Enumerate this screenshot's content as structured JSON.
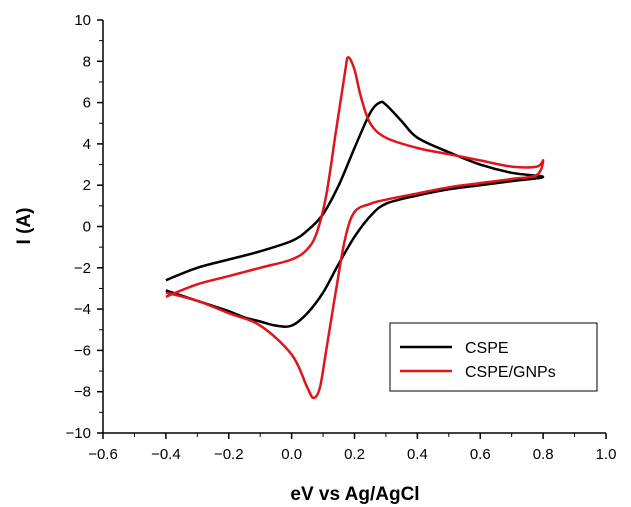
{
  "chart_data": {
    "type": "line",
    "title": "",
    "xlabel": "eV vs Ag/AgCl",
    "ylabel": "I (A)",
    "xlim": [
      -0.6,
      1.0
    ],
    "ylim": [
      -10,
      10
    ],
    "xticks": [
      -0.6,
      -0.4,
      -0.2,
      0.0,
      0.2,
      0.4,
      0.6,
      0.8,
      1.0
    ],
    "xtick_labels": [
      "−0.6",
      "−0.4",
      "−0.2",
      "0.0",
      "0.2",
      "0.4",
      "0.6",
      "0.8",
      "1.0"
    ],
    "yticks": [
      -10,
      -8,
      -6,
      -4,
      -2,
      0,
      2,
      4,
      6,
      8,
      10
    ],
    "ytick_labels": [
      "−10",
      "−8",
      "−6",
      "−4",
      "−2",
      "0",
      "2",
      "4",
      "6",
      "8",
      "10"
    ],
    "grid": false,
    "legend_position": "lower-right",
    "series": [
      {
        "name": "CSPE",
        "color": "#000000",
        "x": [
          -0.4,
          -0.3,
          -0.2,
          -0.1,
          0.0,
          0.05,
          0.1,
          0.15,
          0.2,
          0.25,
          0.28,
          0.3,
          0.35,
          0.4,
          0.5,
          0.6,
          0.7,
          0.8,
          0.7,
          0.6,
          0.5,
          0.4,
          0.3,
          0.25,
          0.2,
          0.15,
          0.1,
          0.05,
          0.0,
          -0.05,
          -0.1,
          -0.15,
          -0.2,
          -0.22,
          -0.3,
          -0.4
        ],
        "y": [
          -2.6,
          -2.0,
          -1.6,
          -1.2,
          -0.7,
          -0.2,
          0.6,
          2.0,
          3.8,
          5.5,
          6.0,
          5.9,
          5.1,
          4.3,
          3.6,
          3.0,
          2.6,
          2.4,
          2.2,
          2.0,
          1.8,
          1.5,
          1.1,
          0.5,
          -0.5,
          -1.8,
          -3.2,
          -4.2,
          -4.8,
          -4.8,
          -4.6,
          -4.4,
          -4.1,
          -4.0,
          -3.6,
          -3.1
        ]
      },
      {
        "name": "CSPE/GNPs",
        "color": "#e0141c",
        "x": [
          -0.4,
          -0.3,
          -0.2,
          -0.1,
          0.0,
          0.05,
          0.08,
          0.11,
          0.14,
          0.17,
          0.18,
          0.2,
          0.22,
          0.25,
          0.3,
          0.4,
          0.5,
          0.6,
          0.7,
          0.78,
          0.8,
          0.78,
          0.7,
          0.6,
          0.5,
          0.4,
          0.3,
          0.25,
          0.2,
          0.17,
          0.14,
          0.11,
          0.09,
          0.07,
          0.05,
          0.0,
          -0.1,
          -0.2,
          -0.3,
          -0.4
        ],
        "y": [
          -3.4,
          -2.8,
          -2.4,
          -2.0,
          -1.6,
          -1.1,
          -0.3,
          1.5,
          4.5,
          7.5,
          8.2,
          7.6,
          6.3,
          5.0,
          4.3,
          3.8,
          3.5,
          3.2,
          2.9,
          2.9,
          3.2,
          2.5,
          2.3,
          2.1,
          1.9,
          1.6,
          1.3,
          1.1,
          0.7,
          -0.6,
          -3.2,
          -6.0,
          -7.8,
          -8.3,
          -7.8,
          -6.2,
          -4.8,
          -4.2,
          -3.6,
          -3.2
        ]
      }
    ]
  }
}
